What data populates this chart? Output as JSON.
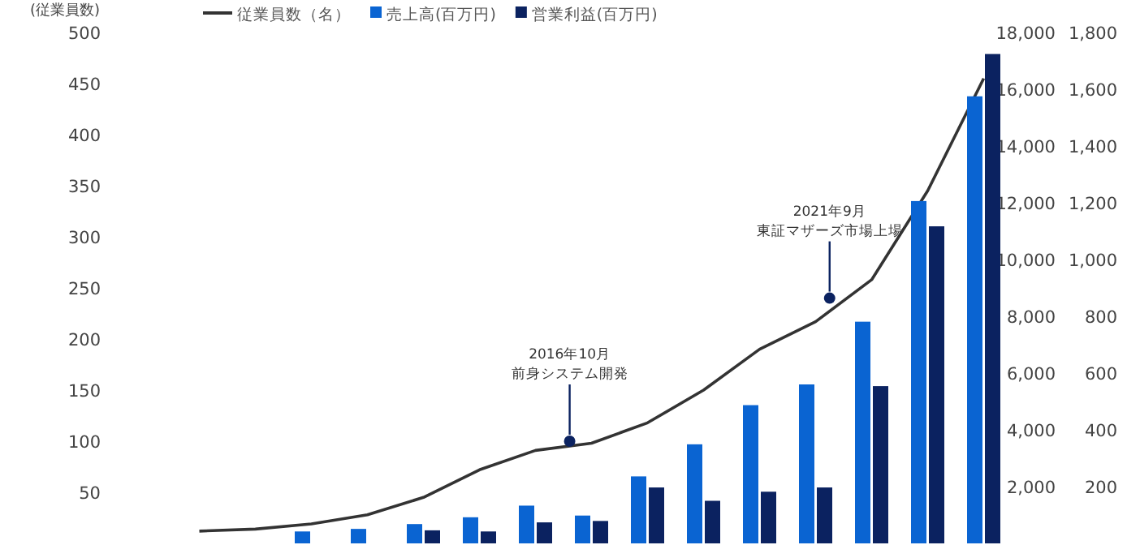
{
  "chart_data": {
    "type": "bar",
    "ylabel": "(従業員数)",
    "categories": [
      null,
      null,
      null,
      null,
      null,
      null,
      null,
      null,
      null,
      null,
      null,
      null,
      null,
      null,
      null,
      null
    ],
    "series": [
      {
        "name": "従業員数（名）",
        "type": "line",
        "color": "#333333",
        "values": [
          null,
          12,
          14,
          19,
          28,
          45,
          72,
          91,
          98,
          118,
          150,
          190,
          217,
          258,
          345,
          455
        ]
      },
      {
        "name": "売上高(百万円)",
        "color": "#0a64d2",
        "axis": "y2",
        "values": [
          null,
          null,
          null,
          420,
          510,
          680,
          920,
          1330,
          980,
          2360,
          3490,
          4870,
          5600,
          7810,
          12060,
          15750
        ]
      },
      {
        "name": "営業利益(百万円)",
        "color": "#0b2260",
        "axis": "y3",
        "values": [
          null,
          null,
          null,
          null,
          null,
          46,
          42,
          74,
          79,
          197,
          150,
          182,
          197,
          554,
          1117,
          1724
        ]
      }
    ],
    "ylim": [
      0,
      500
    ],
    "yticks": [
      50,
      100,
      150,
      200,
      250,
      300,
      350,
      400,
      450,
      500
    ],
    "y2lim": [
      0,
      18000
    ],
    "y2ticks": [
      {
        "value": 2000,
        "label": "2,000"
      },
      {
        "value": 4000,
        "label": "4,000"
      },
      {
        "value": 6000,
        "label": "6,000"
      },
      {
        "value": 8000,
        "label": "8,000"
      },
      {
        "value": 10000,
        "label": "10,000"
      },
      {
        "value": 12000,
        "label": "12,000"
      },
      {
        "value": 14000,
        "label": "14,000"
      },
      {
        "value": 16000,
        "label": "16,000"
      },
      {
        "value": 18000,
        "label": "18,000"
      }
    ],
    "y3lim": [
      0,
      1800
    ],
    "y3ticks": [
      200,
      400,
      600,
      800,
      {
        "value": 1000,
        "label": "1,000"
      },
      {
        "value": 1200,
        "label": "1,200"
      },
      {
        "value": 1400,
        "label": "1,400"
      },
      {
        "value": 1600,
        "label": "1,600"
      },
      {
        "value": 1800,
        "label": "1,800"
      }
    ],
    "annotations": [
      "2016年10月",
      "前身システム開発",
      "2021年9月",
      "東証マザーズ市場上場"
    ],
    "legend": "top",
    "grid": false
  }
}
